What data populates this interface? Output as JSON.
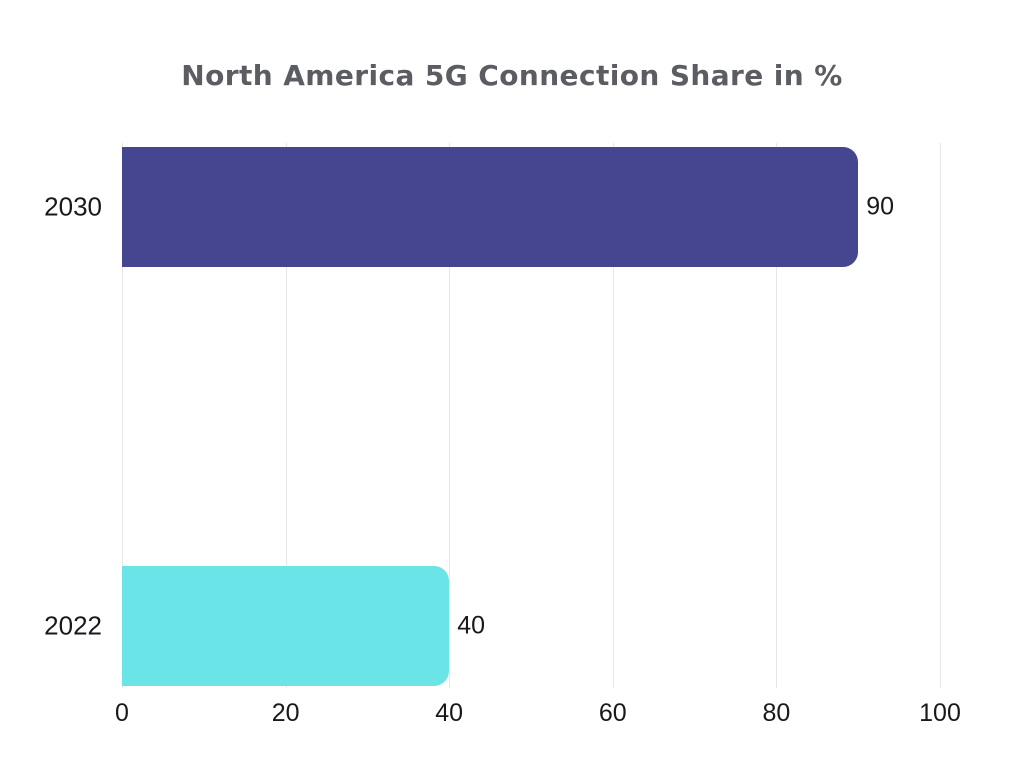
{
  "chart_data": {
    "type": "bar",
    "orientation": "horizontal",
    "title": "North America 5G Connection Share in %",
    "categories": [
      "2030",
      "2022"
    ],
    "values": [
      90,
      40
    ],
    "data_labels": [
      "90",
      "40"
    ],
    "bar_colors": [
      "#454590",
      "#6be4e7"
    ],
    "x_ticks": [
      0,
      20,
      40,
      60,
      80,
      100
    ],
    "xlim": [
      0,
      100
    ],
    "xlabel": "",
    "ylabel": "",
    "grid": "vertical-lines-only",
    "gridline_color": "#e7e7e7",
    "legend": "none",
    "title_color": "#5b5d63",
    "label_color": "#17191c",
    "background_color": "#ffffff"
  }
}
